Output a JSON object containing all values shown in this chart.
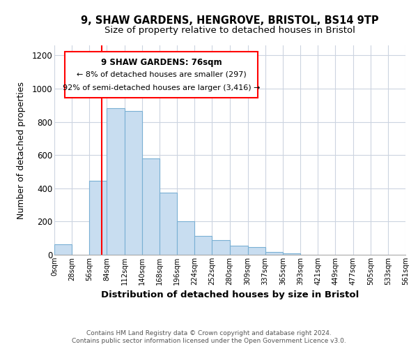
{
  "title": "9, SHAW GARDENS, HENGROVE, BRISTOL, BS14 9TP",
  "subtitle": "Size of property relative to detached houses in Bristol",
  "xlabel": "Distribution of detached houses by size in Bristol",
  "ylabel": "Number of detached properties",
  "bar_color": "#c8ddf0",
  "bar_edge_color": "#7ab0d4",
  "bin_edges": [
    0,
    28,
    56,
    84,
    112,
    140,
    168,
    196,
    224,
    252,
    280,
    309,
    337,
    365,
    393,
    421,
    449,
    477,
    505,
    533,
    561
  ],
  "bin_labels": [
    "0sqm",
    "28sqm",
    "56sqm",
    "84sqm",
    "112sqm",
    "140sqm",
    "168sqm",
    "196sqm",
    "224sqm",
    "252sqm",
    "280sqm",
    "309sqm",
    "337sqm",
    "365sqm",
    "393sqm",
    "421sqm",
    "449sqm",
    "477sqm",
    "505sqm",
    "533sqm",
    "561sqm"
  ],
  "bar_heights": [
    65,
    0,
    445,
    880,
    865,
    580,
    375,
    200,
    115,
    90,
    55,
    45,
    15,
    10,
    0,
    0,
    0,
    0,
    0,
    0
  ],
  "property_line_x": 76,
  "ylim": [
    0,
    1260
  ],
  "yticks": [
    0,
    200,
    400,
    600,
    800,
    1000,
    1200
  ],
  "annotation_title": "9 SHAW GARDENS: 76sqm",
  "annotation_line1": "← 8% of detached houses are smaller (297)",
  "annotation_line2": "92% of semi-detached houses are larger (3,416) →",
  "footer_line1": "Contains HM Land Registry data © Crown copyright and database right 2024.",
  "footer_line2": "Contains public sector information licensed under the Open Government Licence v3.0.",
  "background_color": "#ffffff",
  "grid_color": "#ccd4e0",
  "title_fontsize": 10.5,
  "subtitle_fontsize": 9.5,
  "xlabel_fontsize": 9.5,
  "ylabel_fontsize": 9.0
}
